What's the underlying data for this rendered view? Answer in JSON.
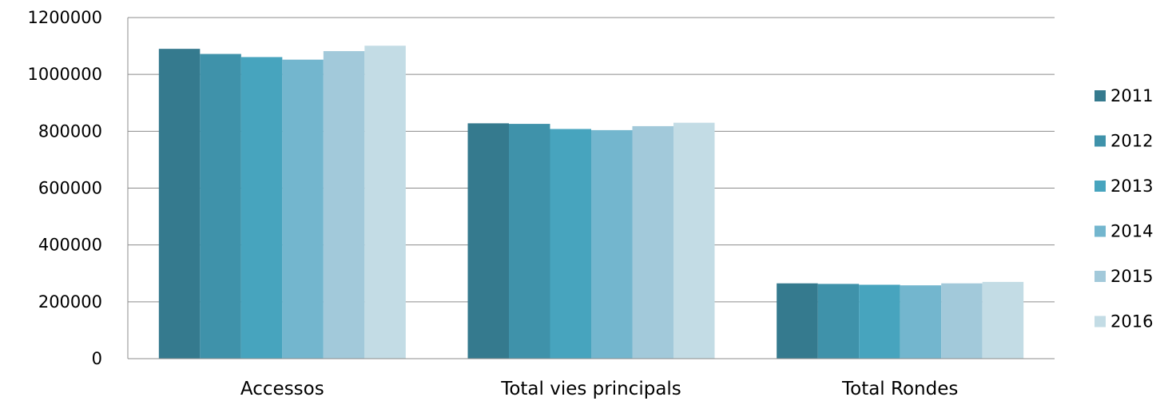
{
  "chart_data": {
    "type": "bar",
    "title": "",
    "xlabel": "",
    "ylabel": "",
    "categories": [
      "Accessos",
      "Total vies principals",
      "Total Rondes"
    ],
    "series": [
      {
        "name": "2011",
        "color": "#357A8E",
        "values": [
          1090000,
          828000,
          265000
        ]
      },
      {
        "name": "2012",
        "color": "#3F92AA",
        "values": [
          1072000,
          826000,
          263000
        ]
      },
      {
        "name": "2013",
        "color": "#47A4BE",
        "values": [
          1061000,
          808000,
          260000
        ]
      },
      {
        "name": "2014",
        "color": "#73B6CE",
        "values": [
          1052000,
          804000,
          258000
        ]
      },
      {
        "name": "2015",
        "color": "#A2C9DA",
        "values": [
          1082000,
          818000,
          265000
        ]
      },
      {
        "name": "2016",
        "color": "#C3DCE5",
        "values": [
          1101000,
          830000,
          270000
        ]
      }
    ],
    "ylim": [
      0,
      1200000
    ],
    "yticks": [
      "0",
      "200000",
      "400000",
      "600000",
      "800000",
      "1000000",
      "1200000"
    ],
    "grid": true,
    "legend_position": "right"
  }
}
